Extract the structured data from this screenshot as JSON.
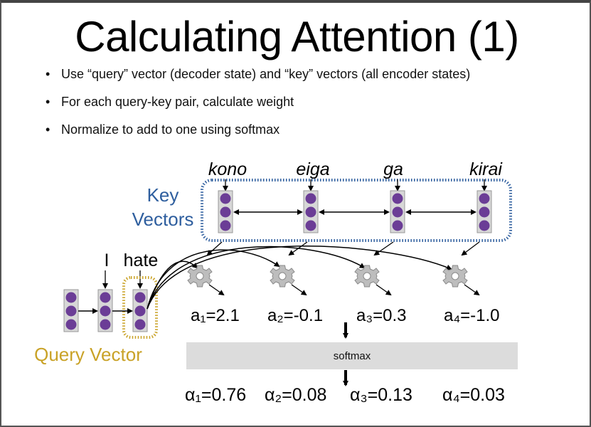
{
  "slide": {
    "title": "Calculating Attention (1)",
    "bullets": [
      "Use “query” vector (decoder state) and “key” vectors (all encoder states)",
      "For each query-key pair, calculate weight",
      "Normalize to add to one using softmax"
    ]
  },
  "diagram": {
    "key_words": [
      "kono",
      "eiga",
      "ga",
      "kirai"
    ],
    "key_label_line1": "Key",
    "key_label_line2": "Vectors",
    "query_tokens": [
      "I",
      "hate"
    ],
    "query_label": "Query Vector",
    "scores": [
      "a₁=2.1",
      "a₂=-0.1",
      "a₃=0.3",
      "a₄=-1.0"
    ],
    "softmax_label": "softmax",
    "alphas": [
      "α₁=0.76",
      "α₂=0.08",
      "α₃=0.13",
      "α₄=0.03"
    ],
    "colors": {
      "vector_fill": "#6b3d96",
      "vector_box": "#d7d7d7",
      "key_border": "#2e5e9e",
      "query_border": "#c9a227",
      "softmax_bar": "#dcdcdc"
    },
    "icons": [
      "gear-icon",
      "gear-icon",
      "gear-icon",
      "gear-icon"
    ]
  }
}
